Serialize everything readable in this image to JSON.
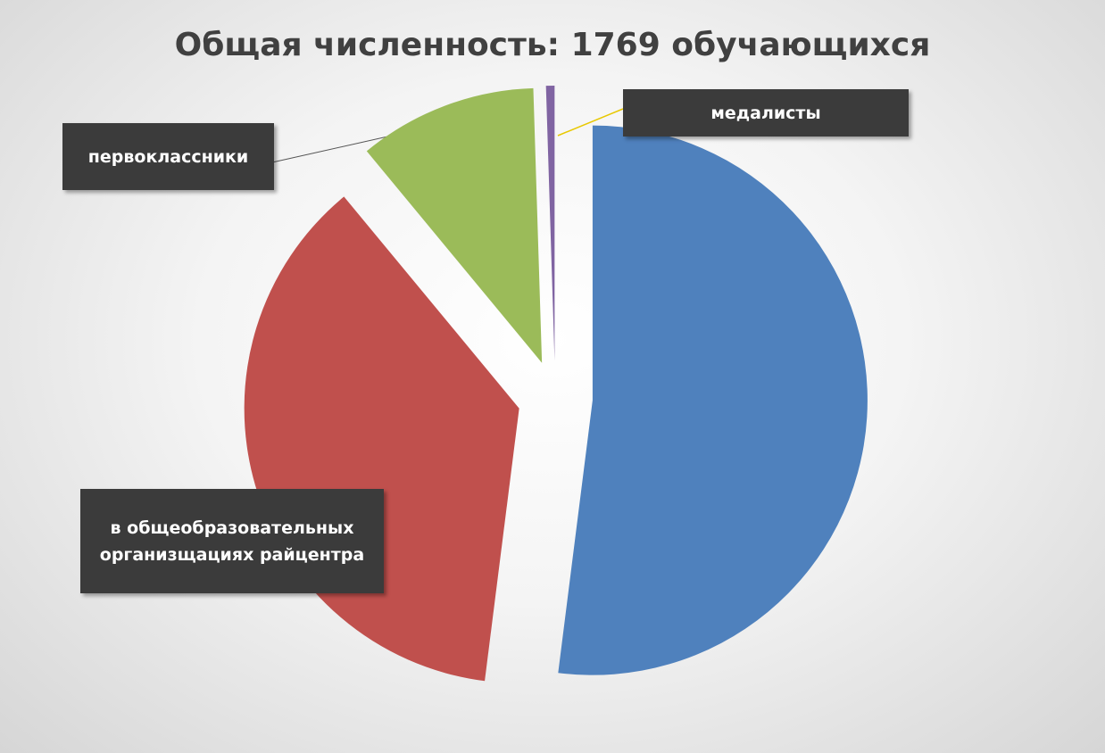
{
  "chart_data": {
    "type": "pie",
    "title": "Общая численность: 1769 обучающихся",
    "categories": [
      null,
      "в общеобразовательных организщациях райцентра",
      "первоклассники",
      "медалисты"
    ],
    "values": [
      52,
      37,
      10.5,
      0.5
    ],
    "colors": [
      "#4f81bd",
      "#c0504d",
      "#9bbb59",
      "#8064a2"
    ]
  }
}
